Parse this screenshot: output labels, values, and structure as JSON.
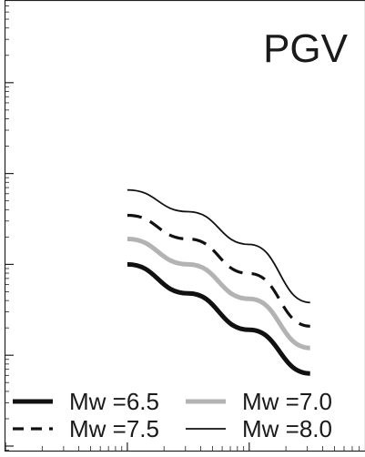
{
  "chart_data": {
    "type": "line",
    "title": "PGV",
    "xlabel": "",
    "ylabel": "",
    "x_scale": "log",
    "y_scale": "log",
    "grid": false,
    "legend_placement": "bottom",
    "series": [
      {
        "name": "Mw =6.5",
        "style": "thick-solid",
        "color": "#111111",
        "points": [
          [
            0.0,
            0.0
          ],
          [
            0.5,
            -0.32
          ],
          [
            1.0,
            -0.72
          ],
          [
            1.5,
            -1.2
          ]
        ]
      },
      {
        "name": "Mw =7.0",
        "style": "thick-solid",
        "color": "#b3b3b3",
        "points": [
          [
            0.0,
            0.28
          ],
          [
            0.5,
            0.0
          ],
          [
            1.0,
            -0.38
          ],
          [
            1.5,
            -0.92
          ]
        ]
      },
      {
        "name": "Mw =7.5",
        "style": "dashed",
        "color": "#111111",
        "points": [
          [
            0.0,
            0.54
          ],
          [
            0.5,
            0.28
          ],
          [
            1.0,
            -0.1
          ],
          [
            1.5,
            -0.68
          ]
        ]
      },
      {
        "name": "Mw =8.0",
        "style": "thin-solid",
        "color": "#111111",
        "points": [
          [
            0.0,
            0.82
          ],
          [
            0.5,
            0.58
          ],
          [
            1.0,
            0.22
          ],
          [
            1.5,
            -0.42
          ]
        ]
      }
    ]
  }
}
